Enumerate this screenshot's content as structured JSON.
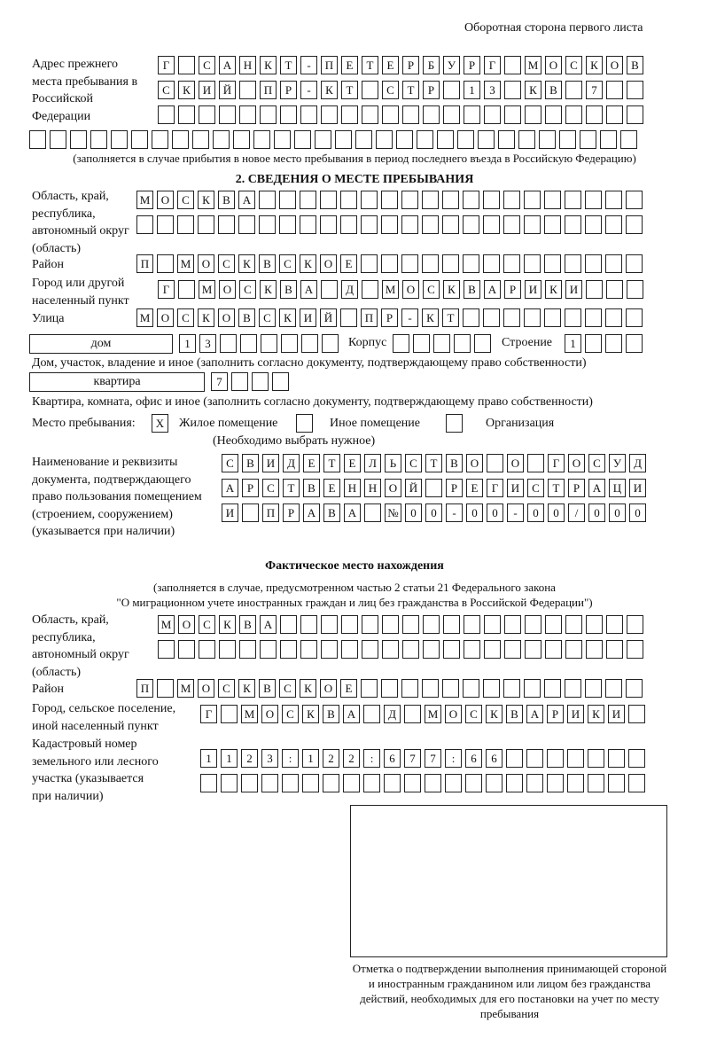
{
  "header": "Оборотная сторона первого листа",
  "previous_address": {
    "label": "Адрес прежнего места пребывания в Российской Федерации",
    "rows": [
      [
        "Г",
        "",
        "С",
        "А",
        "Н",
        "К",
        "Т",
        "-",
        "П",
        "Е",
        "Т",
        "Е",
        "Р",
        "Б",
        "У",
        "Р",
        "Г",
        "",
        "М",
        "О",
        "С",
        "К",
        "О",
        "В"
      ],
      [
        "С",
        "К",
        "И",
        "Й",
        "",
        "П",
        "Р",
        "-",
        "К",
        "Т",
        "",
        "С",
        "Т",
        "Р",
        "",
        "1",
        "3",
        "",
        "К",
        "В",
        "",
        "7",
        "",
        ""
      ],
      [
        "",
        "",
        "",
        "",
        "",
        "",
        "",
        "",
        "",
        "",
        "",
        "",
        "",
        "",
        "",
        "",
        "",
        "",
        "",
        "",
        "",
        "",
        "",
        ""
      ],
      [
        "",
        "",
        "",
        "",
        "",
        "",
        "",
        "",
        "",
        "",
        "",
        "",
        "",
        "",
        "",
        "",
        "",
        "",
        "",
        "",
        "",
        "",
        "",
        "",
        "",
        "",
        "",
        "",
        "",
        ""
      ]
    ],
    "note": "(заполняется в случае прибытия в новое место пребывания в период последнего въезда в Российскую Федерацию)"
  },
  "section2": {
    "title": "2. СВЕДЕНИЯ О МЕСТЕ ПРЕБЫВАНИЯ",
    "region_label": "Область, край, республика, автономный округ (область)",
    "region_rows": [
      [
        "М",
        "О",
        "С",
        "К",
        "В",
        "А",
        "",
        "",
        "",
        "",
        "",
        "",
        "",
        "",
        "",
        "",
        "",
        "",
        "",
        "",
        "",
        "",
        "",
        "",
        ""
      ],
      [
        "",
        "",
        "",
        "",
        "",
        "",
        "",
        "",
        "",
        "",
        "",
        "",
        "",
        "",
        "",
        "",
        "",
        "",
        "",
        "",
        "",
        "",
        "",
        "",
        ""
      ]
    ],
    "district_label": "Район",
    "district_row": [
      "П",
      "",
      "М",
      "О",
      "С",
      "К",
      "В",
      "С",
      "К",
      "О",
      "Е",
      "",
      "",
      "",
      "",
      "",
      "",
      "",
      "",
      "",
      "",
      "",
      "",
      "",
      ""
    ],
    "city_label": "Город или другой населенный пункт",
    "city_row": [
      "Г",
      "",
      "М",
      "О",
      "С",
      "К",
      "В",
      "А",
      "",
      "Д",
      "",
      "М",
      "О",
      "С",
      "К",
      "В",
      "А",
      "Р",
      "И",
      "К",
      "И",
      "",
      "",
      ""
    ],
    "street_label": "Улица",
    "street_row": [
      "М",
      "О",
      "С",
      "К",
      "О",
      "В",
      "С",
      "К",
      "И",
      "Й",
      "",
      "П",
      "Р",
      "-",
      "К",
      "Т",
      "",
      "",
      "",
      "",
      "",
      "",
      "",
      "",
      ""
    ],
    "house_type": "дом",
    "house_cells": [
      "1",
      "3",
      "",
      "",
      "",
      "",
      "",
      ""
    ],
    "korpus_label": "Корпус",
    "korpus_cells": [
      "",
      "",
      "",
      "",
      ""
    ],
    "building_label": "Строение",
    "building_cells": [
      "1",
      "",
      "",
      ""
    ],
    "house_note": "Дом, участок, владение и иное (заполнить согласно документу, подтверждающему право собственности)",
    "flat_type": "квартира",
    "flat_cells": [
      "7",
      "",
      "",
      ""
    ],
    "flat_note": "Квартира, комната, офис и иное (заполнить согласно документу, подтверждающему право собственности)",
    "stay_place_label": "Место пребывания:",
    "stay_options": [
      {
        "mark": "X",
        "label": "Жилое помещение"
      },
      {
        "mark": "",
        "label": "Иное помещение"
      },
      {
        "mark": "",
        "label": "Организация"
      }
    ],
    "stay_note": "(Необходимо выбрать нужное)",
    "document_label": "Наименование и реквизиты документа, подтверждающего право пользования помещением (строением, сооружением) (указывается при наличии)",
    "document_rows": [
      [
        "С",
        "В",
        "И",
        "Д",
        "Е",
        "Т",
        "Е",
        "Л",
        "Ь",
        "С",
        "Т",
        "В",
        "О",
        "",
        "О",
        "",
        "Г",
        "О",
        "С",
        "У",
        "Д"
      ],
      [
        "А",
        "Р",
        "С",
        "Т",
        "В",
        "Е",
        "Н",
        "Н",
        "О",
        "Й",
        "",
        "Р",
        "Е",
        "Г",
        "И",
        "С",
        "Т",
        "Р",
        "А",
        "Ц",
        "И"
      ],
      [
        "И",
        "",
        "П",
        "Р",
        "А",
        "В",
        "А",
        "",
        "№",
        "0",
        "0",
        "-",
        "0",
        "0",
        "-",
        "0",
        "0",
        "/",
        "0",
        "0",
        "0"
      ]
    ]
  },
  "actual": {
    "title": "Фактическое место нахождения",
    "note1": "(заполняется в случае, предусмотренном частью 2 статьи 21 Федерального закона",
    "note2": "\"О миграционном учете иностранных граждан и лиц без гражданства в Российской Федерации\")",
    "region_label": "Область, край, республика, автономный округ (область)",
    "region_rows": [
      [
        "М",
        "О",
        "С",
        "К",
        "В",
        "А",
        "",
        "",
        "",
        "",
        "",
        "",
        "",
        "",
        "",
        "",
        "",
        "",
        "",
        "",
        "",
        "",
        "",
        ""
      ],
      [
        "",
        "",
        "",
        "",
        "",
        "",
        "",
        "",
        "",
        "",
        "",
        "",
        "",
        "",
        "",
        "",
        "",
        "",
        "",
        "",
        "",
        "",
        "",
        ""
      ]
    ],
    "district_label": "Район",
    "district_row": [
      "П",
      "",
      "М",
      "О",
      "С",
      "К",
      "В",
      "С",
      "К",
      "О",
      "Е",
      "",
      "",
      "",
      "",
      "",
      "",
      "",
      "",
      "",
      "",
      "",
      "",
      "",
      ""
    ],
    "city_label": "Город, сельское поселение, иной населенный пункт",
    "city_row": [
      "Г",
      "",
      "М",
      "О",
      "С",
      "К",
      "В",
      "А",
      "",
      "Д",
      "",
      "М",
      "О",
      "С",
      "К",
      "В",
      "А",
      "Р",
      "И",
      "К",
      "И",
      ""
    ],
    "cadastral_label": "Кадастровый номер земельного или лесного участка (указывается при наличии)",
    "cadastral_rows": [
      [
        "1",
        "1",
        "2",
        "3",
        ":",
        "1",
        "2",
        "2",
        ":",
        "6",
        "7",
        "7",
        ":",
        "6",
        "6",
        "",
        "",
        "",
        "",
        "",
        "",
        ""
      ],
      [
        "",
        "",
        "",
        "",
        "",
        "",
        "",
        "",
        "",
        "",
        "",
        "",
        "",
        "",
        "",
        "",
        "",
        "",
        "",
        "",
        "",
        ""
      ]
    ]
  },
  "confirmation_caption": "Отметка о подтверждении выполнения принимающей стороной и иностранным гражданином или лицом без гражданства действий, необходимых для его постановки на учет по месту пребывания"
}
